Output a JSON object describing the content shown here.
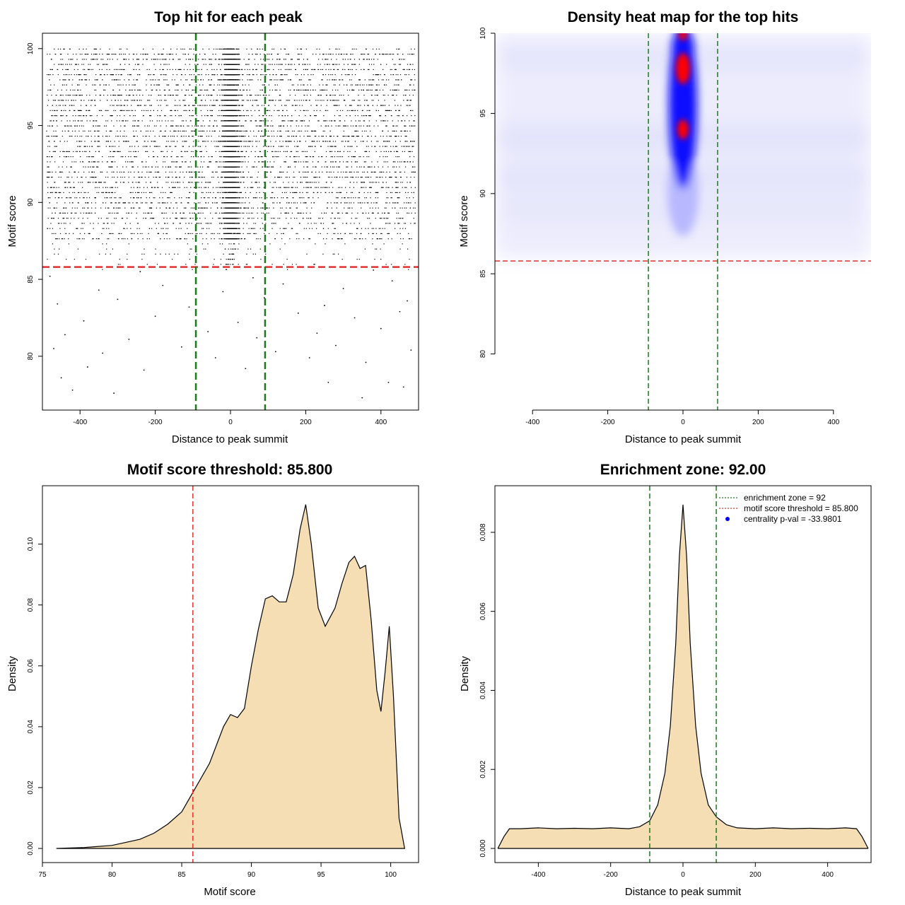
{
  "chart_data": [
    {
      "type": "scatter",
      "title": "Top hit for each peak",
      "xlabel": "Distance to peak summit",
      "ylabel": "Motif score",
      "xlim": [
        -500,
        500
      ],
      "ylim": [
        76.5,
        101
      ],
      "xticks": [
        -400,
        -200,
        0,
        200,
        400
      ],
      "yticks": [
        80,
        85,
        90,
        95,
        100
      ],
      "threshold_y": 85.8,
      "zone_x": [
        -92,
        92
      ],
      "colors": {
        "points": "#000000",
        "threshold": "#e03030",
        "zone": "#1a7a1a"
      },
      "points": [
        {
          "x": -420,
          "y": 77.8
        },
        {
          "x": -310,
          "y": 77.6
        },
        {
          "x": 350,
          "y": 77.3
        },
        {
          "x": 460,
          "y": 78.0
        },
        {
          "x": -450,
          "y": 78.6
        },
        {
          "x": 260,
          "y": 78.3
        },
        {
          "x": 420,
          "y": 78.3
        },
        {
          "x": -380,
          "y": 79.3
        },
        {
          "x": -230,
          "y": 79.1
        },
        {
          "x": -40,
          "y": 79.9
        },
        {
          "x": 40,
          "y": 79.2
        },
        {
          "x": 210,
          "y": 79.9
        },
        {
          "x": 360,
          "y": 79.6
        },
        {
          "x": -470,
          "y": 80.5
        },
        {
          "x": -340,
          "y": 80.2
        },
        {
          "x": -130,
          "y": 80.6
        },
        {
          "x": 120,
          "y": 80.3
        },
        {
          "x": 280,
          "y": 80.7
        },
        {
          "x": 480,
          "y": 80.4
        },
        {
          "x": -440,
          "y": 81.4
        },
        {
          "x": -270,
          "y": 81.1
        },
        {
          "x": -60,
          "y": 81.6
        },
        {
          "x": 70,
          "y": 81.2
        },
        {
          "x": 230,
          "y": 81.5
        },
        {
          "x": 400,
          "y": 81.8
        },
        {
          "x": -390,
          "y": 82.3
        },
        {
          "x": -200,
          "y": 82.6
        },
        {
          "x": 20,
          "y": 82.2
        },
        {
          "x": 180,
          "y": 82.8
        },
        {
          "x": 330,
          "y": 82.5
        },
        {
          "x": 450,
          "y": 82.9
        },
        {
          "x": -460,
          "y": 83.4
        },
        {
          "x": -300,
          "y": 83.7
        },
        {
          "x": -110,
          "y": 83.2
        },
        {
          "x": 90,
          "y": 83.8
        },
        {
          "x": 250,
          "y": 83.3
        },
        {
          "x": 470,
          "y": 83.6
        },
        {
          "x": -350,
          "y": 84.3
        },
        {
          "x": -180,
          "y": 84.6
        },
        {
          "x": -20,
          "y": 84.2
        },
        {
          "x": 140,
          "y": 84.7
        },
        {
          "x": 300,
          "y": 84.4
        },
        {
          "x": 430,
          "y": 84.9
        },
        {
          "x": -480,
          "y": 85.2
        },
        {
          "x": -240,
          "y": 85.5
        },
        {
          "x": 60,
          "y": 85.1
        },
        {
          "x": 380,
          "y": 85.6
        }
      ]
    },
    {
      "type": "heatmap",
      "title": "Density heat map for the top hits",
      "xlabel": "Distance to peak summit",
      "ylabel": "Motif score",
      "xlim": [
        -500,
        500
      ],
      "ylim": [
        76.5,
        100
      ],
      "xticks": [
        -400,
        -200,
        0,
        200,
        400
      ],
      "yticks": [
        80,
        85,
        90,
        95,
        100
      ],
      "threshold_y": 85.8,
      "zone_x": [
        -92,
        92
      ],
      "colors": {
        "low": "#ffffff",
        "mid": "#0000ff",
        "high": "#ff0000",
        "threshold": "#e03030",
        "zone": "#1a7a1a"
      }
    },
    {
      "type": "area",
      "title": "Motif score threshold: 85.800",
      "xlabel": "Motif score",
      "ylabel": "Density",
      "xlim": [
        75,
        102
      ],
      "ylim": [
        0,
        0.115
      ],
      "xticks": [
        75,
        80,
        85,
        90,
        95,
        100
      ],
      "yticks": [
        0.0,
        0.02,
        0.04,
        0.06,
        0.08,
        0.1
      ],
      "ytick_labels": [
        "0.00",
        "0.02",
        "0.04",
        "0.06",
        "0.08",
        "0.10"
      ],
      "threshold_x": 85.8,
      "colors": {
        "fill": "#f5deb3",
        "line": "#000000",
        "threshold": "#e03030"
      },
      "x": [
        76,
        78,
        80,
        82,
        83,
        84,
        85,
        86,
        87,
        88,
        88.5,
        89,
        89.5,
        90,
        90.5,
        91,
        91.5,
        92,
        92.5,
        93,
        93.5,
        93.9,
        94.3,
        94.8,
        95.3,
        96,
        96.5,
        97,
        97.4,
        97.8,
        98.2,
        98.6,
        99,
        99.3,
        99.6,
        99.9,
        100.2,
        100.6,
        101
      ],
      "y": [
        0.0,
        0.0003,
        0.001,
        0.003,
        0.005,
        0.008,
        0.012,
        0.02,
        0.028,
        0.04,
        0.044,
        0.043,
        0.046,
        0.06,
        0.072,
        0.082,
        0.083,
        0.081,
        0.081,
        0.09,
        0.105,
        0.113,
        0.1,
        0.079,
        0.073,
        0.079,
        0.087,
        0.094,
        0.096,
        0.092,
        0.093,
        0.075,
        0.052,
        0.045,
        0.058,
        0.073,
        0.05,
        0.01,
        0.0
      ]
    },
    {
      "type": "area",
      "title": "Enrichment zone: 92.00",
      "xlabel": "Distance to peak summit",
      "ylabel": "Density",
      "xlim": [
        -520,
        520
      ],
      "ylim": [
        0,
        0.009
      ],
      "xticks": [
        -400,
        -200,
        0,
        200,
        400
      ],
      "yticks": [
        0.0,
        0.002,
        0.004,
        0.006,
        0.008
      ],
      "ytick_labels": [
        "0.000",
        "0.002",
        "0.004",
        "0.006",
        "0.008"
      ],
      "zone_x": [
        -92,
        92
      ],
      "colors": {
        "fill": "#f5deb3",
        "line": "#000000",
        "zone": "#1a7a1a",
        "threshold": "#e03030",
        "pval": "#0000ff"
      },
      "legend": [
        {
          "label": "enrichment zone = 92",
          "style": "zone-line"
        },
        {
          "label": "motif score threshold = 85.800",
          "style": "threshold-line"
        },
        {
          "label": "centrality p-val = -33.9801",
          "style": "pval-dot"
        }
      ],
      "x": [
        -512,
        -495,
        -480,
        -450,
        -400,
        -350,
        -300,
        -250,
        -200,
        -150,
        -120,
        -92,
        -70,
        -50,
        -35,
        -20,
        -10,
        0,
        10,
        20,
        35,
        50,
        70,
        92,
        120,
        150,
        200,
        250,
        300,
        350,
        400,
        450,
        480,
        495,
        512
      ],
      "y": [
        0.0,
        0.0003,
        0.0005,
        0.0005,
        0.00052,
        0.0005,
        0.00051,
        0.0005,
        0.00052,
        0.0005,
        0.00055,
        0.0007,
        0.0011,
        0.0019,
        0.0031,
        0.0052,
        0.0074,
        0.0087,
        0.0074,
        0.0052,
        0.0031,
        0.0019,
        0.0011,
        0.0008,
        0.0006,
        0.00052,
        0.0005,
        0.00052,
        0.0005,
        0.00051,
        0.0005,
        0.00052,
        0.0005,
        0.0003,
        0.0
      ]
    }
  ]
}
